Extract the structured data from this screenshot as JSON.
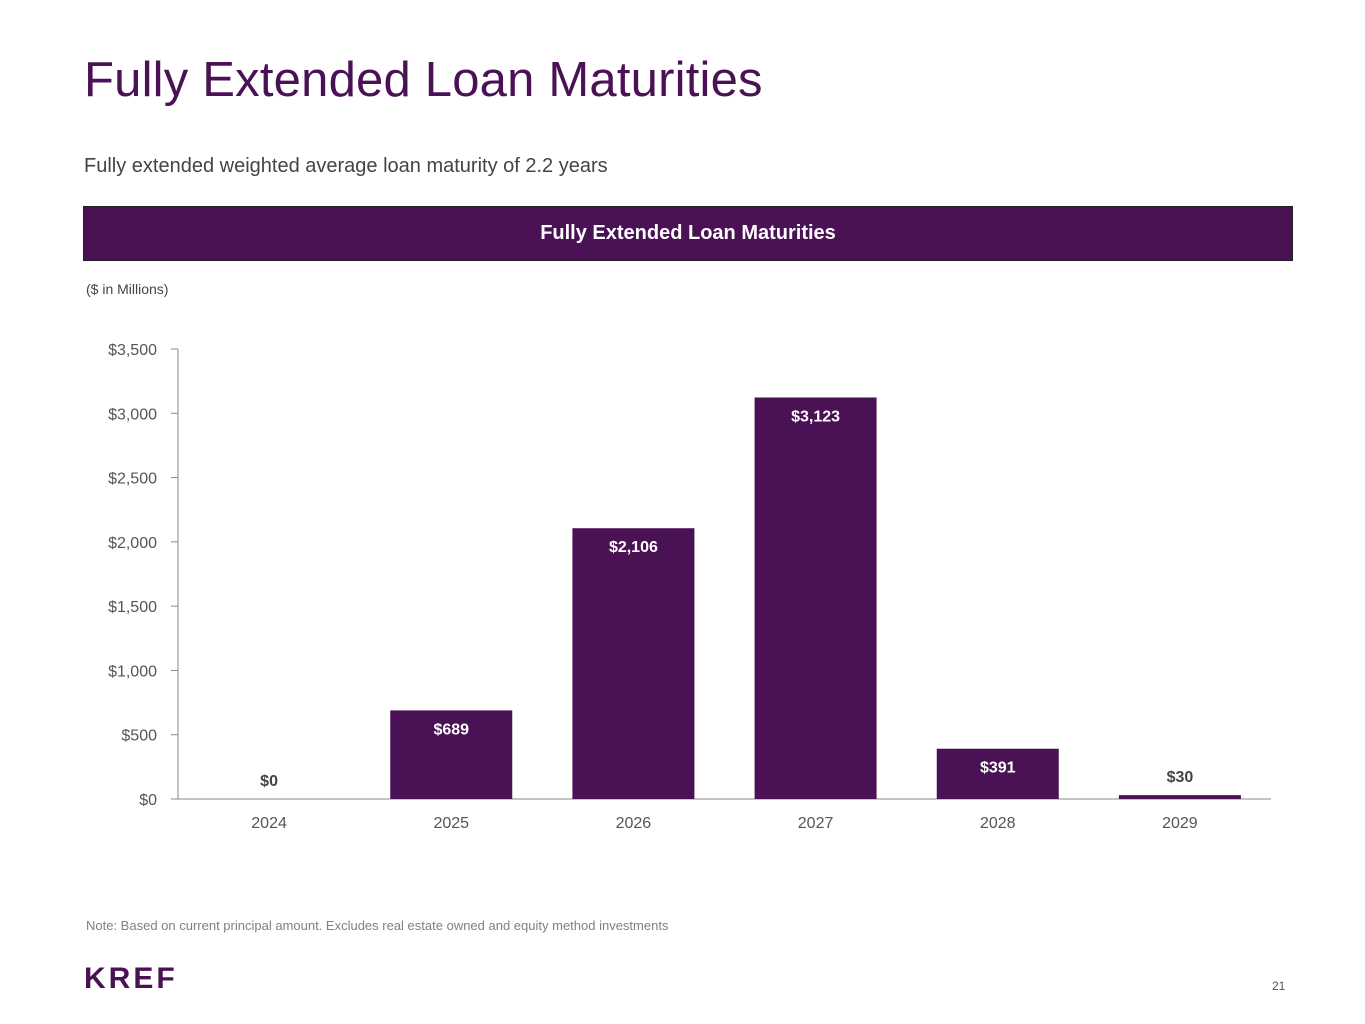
{
  "page": {
    "title": "Fully Extended Loan Maturities",
    "subtitle": "Fully extended weighted average loan maturity of 2.2 years",
    "banner": "Fully Extended Loan Maturities",
    "units_note": "($ in Millions)",
    "footnote": "Note: Based on current principal amount. Excludes real estate owned and equity method investments",
    "logo": "KREF",
    "page_number": "21"
  },
  "colors": {
    "brand": "#4a1155",
    "axis": "#888888",
    "tick_text": "#555555"
  },
  "chart_data": {
    "type": "bar",
    "title": "",
    "xlabel": "",
    "ylabel": "",
    "categories": [
      "2024",
      "2025",
      "2026",
      "2027",
      "2028",
      "2029"
    ],
    "values": [
      0,
      689,
      2106,
      3123,
      391,
      30
    ],
    "data_labels": [
      "$0",
      "$689",
      "$2,106",
      "$3,123",
      "$391",
      "$30"
    ],
    "ylim": [
      0,
      3500
    ],
    "yticks": [
      0,
      500,
      1000,
      1500,
      2000,
      2500,
      3000,
      3500
    ],
    "ytick_labels": [
      "$0",
      "$500",
      "$1,000",
      "$1,500",
      "$2,000",
      "$2,500",
      "$3,000",
      "$3,500"
    ],
    "grid": false,
    "legend": "none"
  }
}
